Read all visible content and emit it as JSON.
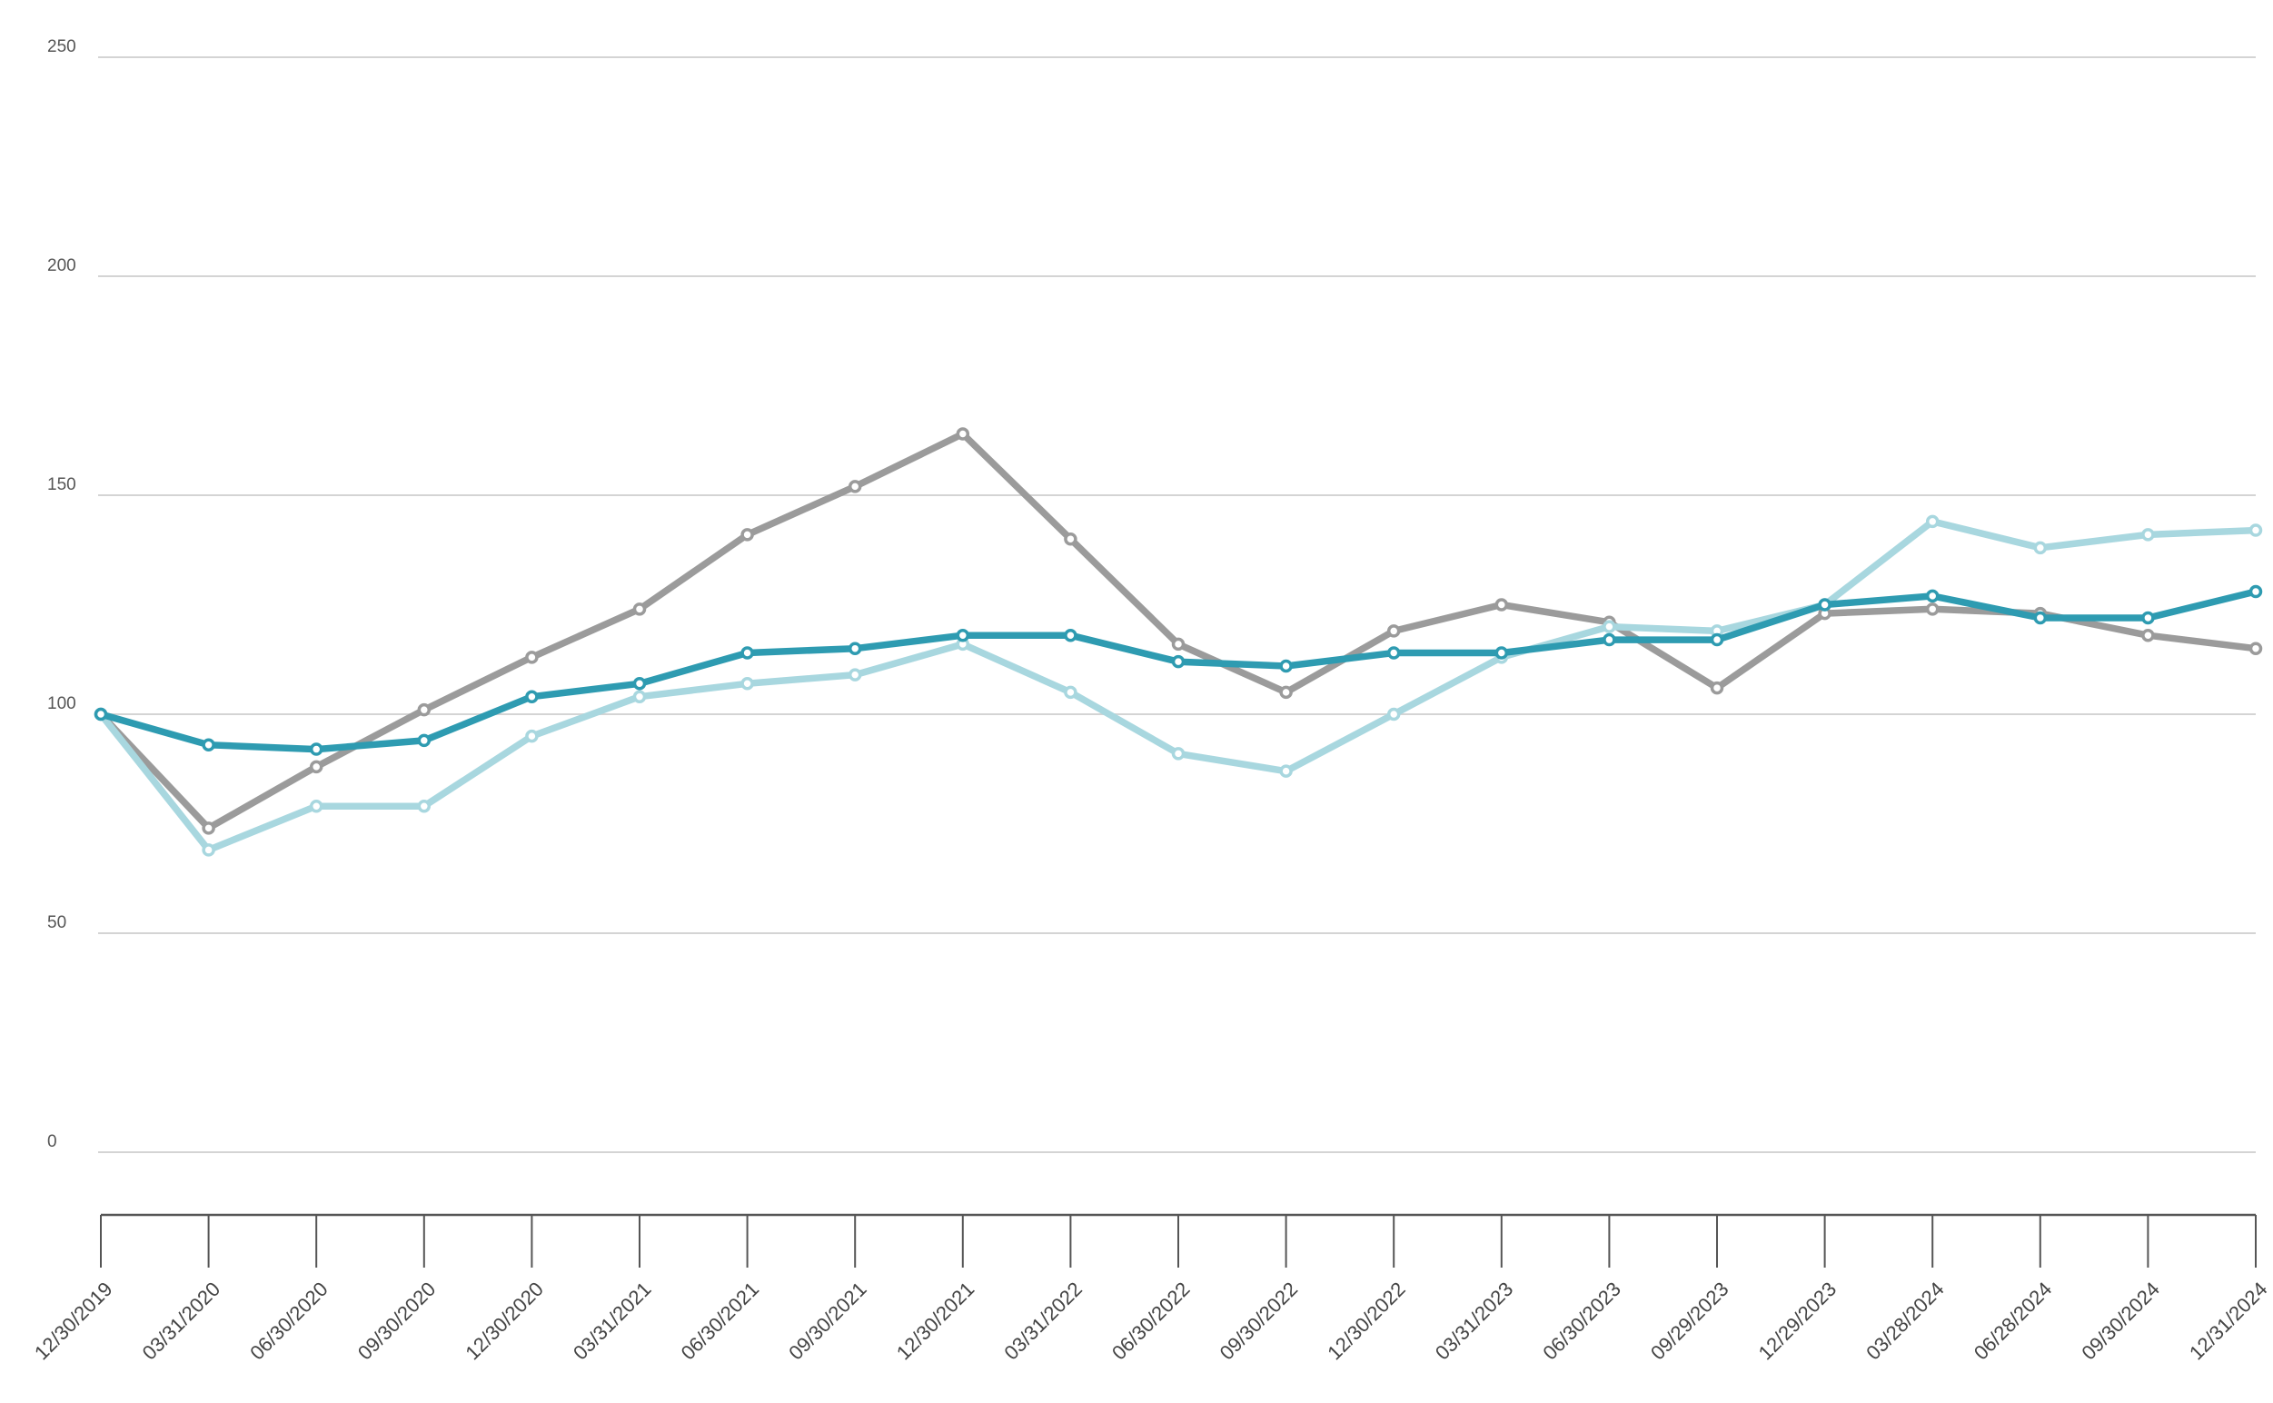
{
  "chart_data": {
    "type": "line",
    "title": "",
    "xlabel": "",
    "ylabel": "",
    "ylim": [
      0,
      250
    ],
    "yticks": [
      0,
      50,
      100,
      150,
      200,
      250
    ],
    "grid": true,
    "legend": "none",
    "categories": [
      "12/30/2019",
      "03/31/2020",
      "06/30/2020",
      "09/30/2020",
      "12/30/2020",
      "03/31/2021",
      "06/30/2021",
      "09/30/2021",
      "12/30/2021",
      "03/31/2022",
      "06/30/2022",
      "09/30/2022",
      "12/30/2022",
      "03/31/2023",
      "06/30/2023",
      "09/29/2023",
      "12/29/2023",
      "03/28/2024",
      "06/28/2024",
      "09/30/2024",
      "12/31/2024"
    ],
    "series": [
      {
        "color": "#9b9b9b",
        "values": [
          100,
          74,
          88,
          101,
          113,
          124,
          141,
          152,
          164,
          140,
          116,
          105,
          119,
          125,
          121,
          106,
          123,
          124,
          123,
          118,
          115
        ]
      },
      {
        "color": "#a8d7df",
        "values": [
          100,
          69,
          79,
          79,
          95,
          104,
          107,
          109,
          116,
          105,
          91,
          87,
          100,
          113,
          120,
          119,
          125,
          144,
          138,
          141,
          142
        ]
      },
      {
        "color": "#2e9bb1",
        "values": [
          100,
          93,
          92,
          94,
          104,
          107,
          114,
          115,
          118,
          118,
          112,
          111,
          114,
          114,
          117,
          117,
          125,
          127,
          122,
          122,
          128
        ]
      }
    ]
  }
}
